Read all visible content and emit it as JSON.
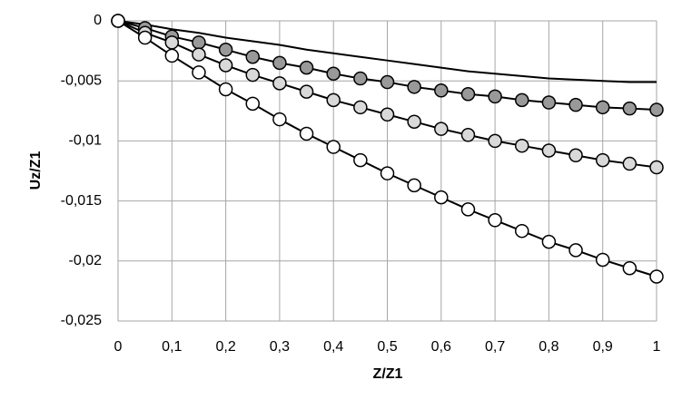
{
  "chart_data": {
    "type": "line",
    "x_label": "Z/Z1",
    "y_label": "Uz/Z1",
    "x": [
      0,
      0.05,
      0.1,
      0.15,
      0.2,
      0.25,
      0.3,
      0.35,
      0.4,
      0.45,
      0.5,
      0.55,
      0.6,
      0.65,
      0.7,
      0.75,
      0.8,
      0.85,
      0.9,
      0.95,
      1
    ],
    "series": [
      {
        "color": "#000000",
        "marker": "none",
        "values": [
          0,
          -0.0003,
          -0.0007,
          -0.001,
          -0.0014,
          -0.0017,
          -0.002,
          -0.0024,
          -0.0027,
          -0.003,
          -0.0033,
          -0.0036,
          -0.0039,
          -0.0042,
          -0.0044,
          -0.0046,
          -0.0048,
          -0.0049,
          -0.005,
          -0.0051,
          -0.0051
        ]
      },
      {
        "color": "#000000",
        "marker": "circle",
        "marker_fill": "#999999",
        "values": [
          0,
          -0.0006,
          -0.0013,
          -0.0018,
          -0.0024,
          -0.003,
          -0.0035,
          -0.0039,
          -0.0044,
          -0.0048,
          -0.0051,
          -0.0055,
          -0.0058,
          -0.0061,
          -0.0063,
          -0.0066,
          -0.0068,
          -0.007,
          -0.0072,
          -0.0073,
          -0.0074
        ]
      },
      {
        "color": "#000000",
        "marker": "circle",
        "marker_fill": "#d9d9d9",
        "values": [
          0,
          -0.001,
          -0.0018,
          -0.0028,
          -0.0037,
          -0.0045,
          -0.0052,
          -0.0059,
          -0.0066,
          -0.0072,
          -0.0078,
          -0.0084,
          -0.009,
          -0.0095,
          -0.01,
          -0.0104,
          -0.0108,
          -0.0112,
          -0.0116,
          -0.0119,
          -0.0122
        ]
      },
      {
        "color": "#000000",
        "marker": "circle",
        "marker_fill": "#ffffff",
        "values": [
          0,
          -0.0014,
          -0.0029,
          -0.0043,
          -0.0057,
          -0.0069,
          -0.0082,
          -0.0094,
          -0.0105,
          -0.0116,
          -0.0127,
          -0.0137,
          -0.0147,
          -0.0157,
          -0.0166,
          -0.0175,
          -0.0184,
          -0.0191,
          -0.0199,
          -0.0206,
          -0.0213
        ]
      }
    ],
    "xlim": [
      0,
      1
    ],
    "xticks": [
      0,
      {
        "value": 0.1,
        "label": "0,1"
      },
      {
        "value": 0.2,
        "label": "0,2"
      },
      {
        "value": 0.3,
        "label": "0,3"
      },
      {
        "value": 0.4,
        "label": "0,4"
      },
      {
        "value": 0.5,
        "label": "0,5"
      },
      {
        "value": 0.6,
        "label": "0,6"
      },
      {
        "value": 0.7,
        "label": "0,7"
      },
      {
        "value": 0.8,
        "label": "0,8"
      },
      {
        "value": 0.9,
        "label": "0,9"
      },
      1
    ],
    "ylim": [
      -0.025,
      0
    ],
    "yticks": [
      0,
      {
        "value": -0.005,
        "label": "-0,005"
      },
      {
        "value": -0.01,
        "label": "-0,01"
      },
      {
        "value": -0.015,
        "label": "-0,015"
      },
      {
        "value": -0.02,
        "label": "-0,02"
      },
      {
        "value": -0.025,
        "label": "-0,025"
      }
    ],
    "grid": true
  }
}
